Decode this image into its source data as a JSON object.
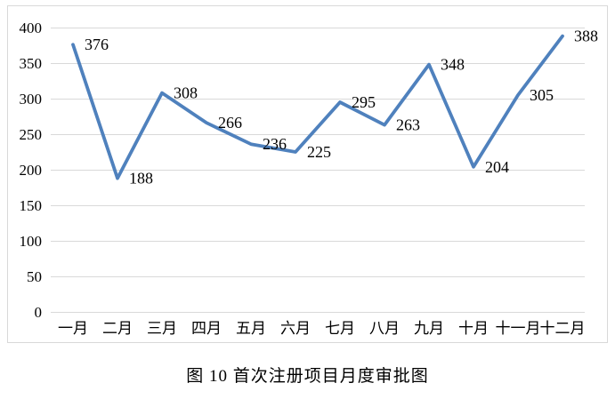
{
  "chart_data": {
    "type": "line",
    "title": "图 10 首次注册项目月度审批图",
    "categories": [
      "一月",
      "二月",
      "三月",
      "四月",
      "五月",
      "六月",
      "七月",
      "八月",
      "九月",
      "十月",
      "十一月",
      "十二月"
    ],
    "values": [
      376,
      188,
      308,
      266,
      236,
      225,
      295,
      263,
      348,
      204,
      305,
      388
    ],
    "xlabel": "",
    "ylabel": "",
    "ylim": [
      0,
      400
    ],
    "yticks": [
      0,
      50,
      100,
      150,
      200,
      250,
      300,
      350,
      400
    ],
    "grid": true,
    "legend_position": "none",
    "data_labels": true,
    "colors": {
      "line": "#4F81BD",
      "gridline": "#D9D9D9",
      "frame": "#D9D9D9",
      "text": "#000000",
      "background": "#FFFFFF"
    }
  }
}
